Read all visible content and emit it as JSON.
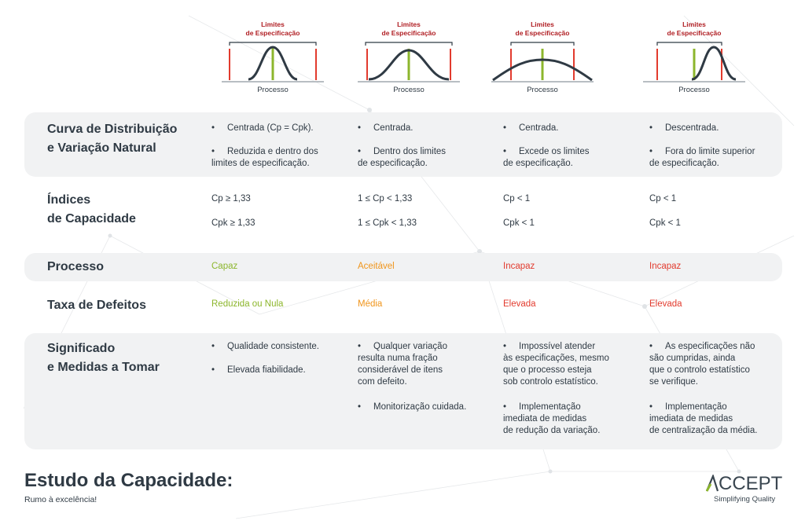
{
  "header": {
    "columns": [
      {
        "limits_label": "Limites\nde Especificação",
        "process_label": "Processo",
        "curve": "narrow-centered-icon"
      },
      {
        "limits_label": "Limites\nde Especificação",
        "process_label": "Processo",
        "curve": "wide-centered-icon"
      },
      {
        "limits_label": "Limites\nde Especificação",
        "process_label": "Processo",
        "curve": "flat-exceeding-icon"
      },
      {
        "limits_label": "Limites\nde Especificação",
        "process_label": "Processo",
        "curve": "shifted-right-icon"
      }
    ]
  },
  "rows": {
    "distribution": {
      "title": "Curva de Distribuição\ne Variação Natural",
      "cols": [
        [
          "Centrada (Cp = Cpk).",
          "Reduzida e dentro dos\nlimites de especificação."
        ],
        [
          "Centrada.",
          "Dentro dos limites\nde especificação."
        ],
        [
          "Centrada.",
          "Excede os limites\nde especificação."
        ],
        [
          "Descentrada.",
          "Fora do limite superior\nde especificação."
        ]
      ]
    },
    "indices": {
      "title": "Índices\nde Capacidade",
      "cols": [
        [
          "Cp ≥ 1,33",
          "Cpk ≥ 1,33"
        ],
        [
          "1 ≤ Cp < 1,33",
          "1 ≤ Cpk < 1,33"
        ],
        [
          "Cp < 1",
          "Cpk < 1"
        ],
        [
          "Cp < 1",
          "Cpk < 1"
        ]
      ]
    },
    "process": {
      "title": "Processo",
      "cols": [
        "Capaz",
        "Aceitável",
        "Incapaz",
        "Incapaz"
      ]
    },
    "defects": {
      "title": "Taxa de Defeitos",
      "cols": [
        "Reduzida ou Nula",
        "Média",
        "Elevada",
        "Elevada"
      ]
    },
    "meaning": {
      "title": "Significado\ne Medidas a Tomar",
      "cols": [
        [
          "Qualidade consistente.",
          "Elevada fiabilidade."
        ],
        [
          "Qualquer variação\nresulta numa fração\nconsiderável de itens\ncom defeito.",
          "Monitorização cuidada."
        ],
        [
          "Impossível atender\nàs especificações, mesmo\nque o processo esteja\nsob controlo estatístico.",
          "Implementação\nimediata de medidas\nde redução da variação."
        ],
        [
          "As especificações não\nsão cumpridas, ainda\nque o controlo estatístico\nse verifique.",
          "Implementação\nimediata de medidas\nde centralização da média."
        ]
      ]
    }
  },
  "status_colors": {
    "green": "#8cb62c",
    "orange": "#f0951b",
    "red": "#e23b2e"
  },
  "footer": {
    "title": "Estudo da Capacidade:",
    "subtitle": "Rumo à excelência!"
  },
  "logo": {
    "word": "CCEPT",
    "tagline": "Simplifying Quality",
    "icon": "accept-a-logo-icon"
  }
}
